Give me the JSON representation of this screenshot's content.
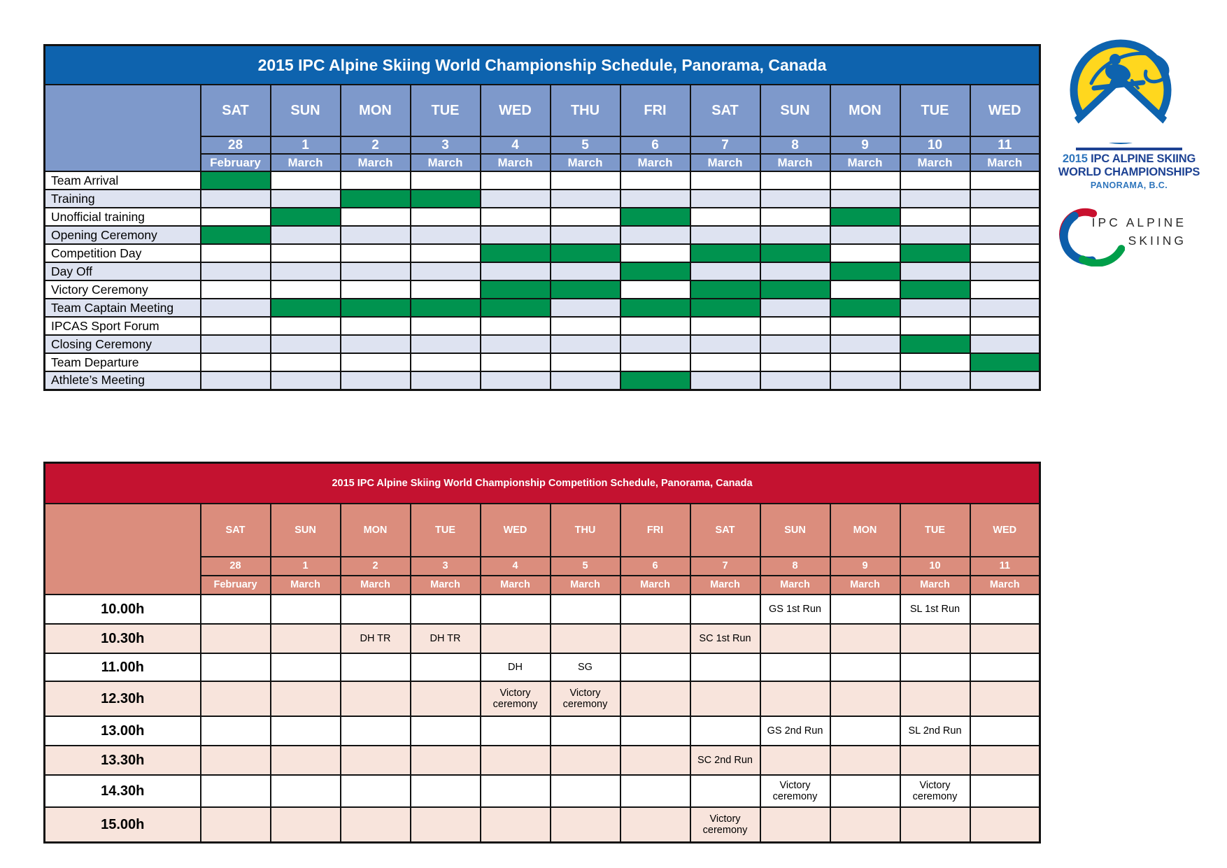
{
  "colors": {
    "planning_title_bg": "#0E63AE",
    "planning_header_bg": "#7E99CB",
    "planning_alt_row": "#DEE3F1",
    "active_green": "#00934F",
    "competition_title_bg": "#C41230",
    "competition_header_bg": "#DB8D7D",
    "competition_alt_row": "#F8E4DC",
    "grid_border": "#121212",
    "logo_navy": "#1D4293",
    "logo_blue": "#2E75BC",
    "logo_yellow": "#FFD71E",
    "agitos_red": "#C8102E",
    "agitos_blue": "#0D5EAA",
    "agitos_green": "#009E49",
    "wordmark_gray": "#2A2A2A"
  },
  "planning_table": {
    "title": "2015 IPC Alpine Skiing World Championship Schedule, Panorama, Canada",
    "columns": [
      {
        "day": "SAT",
        "date": "28",
        "month": "February"
      },
      {
        "day": "SUN",
        "date": "1",
        "month": "March"
      },
      {
        "day": "MON",
        "date": "2",
        "month": "March"
      },
      {
        "day": "TUE",
        "date": "3",
        "month": "March"
      },
      {
        "day": "WED",
        "date": "4",
        "month": "March"
      },
      {
        "day": "THU",
        "date": "5",
        "month": "March"
      },
      {
        "day": "FRI",
        "date": "6",
        "month": "March"
      },
      {
        "day": "SAT",
        "date": "7",
        "month": "March"
      },
      {
        "day": "SUN",
        "date": "8",
        "month": "March"
      },
      {
        "day": "MON",
        "date": "9",
        "month": "March"
      },
      {
        "day": "TUE",
        "date": "10",
        "month": "March"
      },
      {
        "day": "WED",
        "date": "11",
        "month": "March"
      }
    ],
    "rows": [
      {
        "label": "Team Arrival",
        "active_days": [
          0
        ]
      },
      {
        "label": "Training",
        "active_days": [
          2,
          3
        ]
      },
      {
        "label": "Unofficial training",
        "active_days": [
          1,
          6,
          9
        ]
      },
      {
        "label": "Opening Ceremony",
        "active_days": [
          0
        ]
      },
      {
        "label": "Competition Day",
        "active_days": [
          4,
          5,
          7,
          8,
          10
        ]
      },
      {
        "label": "Day Off",
        "active_days": [
          6,
          9
        ]
      },
      {
        "label": "Victory Ceremony",
        "active_days": [
          4,
          5,
          7,
          8,
          10
        ]
      },
      {
        "label": "Team Captain Meeting",
        "active_days": [
          1,
          2,
          3,
          4,
          6,
          7,
          9
        ]
      },
      {
        "label": "IPCAS Sport Forum",
        "active_days": []
      },
      {
        "label": "Closing Ceremony",
        "active_days": [
          10
        ]
      },
      {
        "label": "Team Departure",
        "active_days": [
          11
        ]
      },
      {
        "label": "Athlete’s Meeting",
        "active_days": [
          6
        ]
      }
    ]
  },
  "competition_table": {
    "title": "2015 IPC Alpine Skiing World Championship Competition Schedule, Panorama, Canada",
    "columns": [
      {
        "day": "SAT",
        "date": "28",
        "month": "February"
      },
      {
        "day": "SUN",
        "date": "1",
        "month": "March"
      },
      {
        "day": "MON",
        "date": "2",
        "month": "March"
      },
      {
        "day": "TUE",
        "date": "3",
        "month": "March"
      },
      {
        "day": "WED",
        "date": "4",
        "month": "March"
      },
      {
        "day": "THU",
        "date": "5",
        "month": "March"
      },
      {
        "day": "FRI",
        "date": "6",
        "month": "March"
      },
      {
        "day": "SAT",
        "date": "7",
        "month": "March"
      },
      {
        "day": "SUN",
        "date": "8",
        "month": "March"
      },
      {
        "day": "MON",
        "date": "9",
        "month": "March"
      },
      {
        "day": "TUE",
        "date": "10",
        "month": "March"
      },
      {
        "day": "WED",
        "date": "11",
        "month": "March"
      }
    ],
    "rows": [
      {
        "time": "10.00h",
        "events": [
          {
            "col": 8,
            "label": "GS 1st Run"
          },
          {
            "col": 10,
            "label": "SL 1st Run"
          }
        ]
      },
      {
        "time": "10.30h",
        "events": [
          {
            "col": 2,
            "label": "DH TR"
          },
          {
            "col": 3,
            "label": "DH TR"
          },
          {
            "col": 7,
            "label": "SC 1st Run"
          }
        ]
      },
      {
        "time": "11.00h",
        "events": [
          {
            "col": 4,
            "label": "DH"
          },
          {
            "col": 5,
            "label": "SG"
          }
        ]
      },
      {
        "time": "12.30h",
        "events": [
          {
            "col": 4,
            "label": "Victory ceremony"
          },
          {
            "col": 5,
            "label": "Victory ceremony"
          }
        ]
      },
      {
        "time": "13.00h",
        "events": [
          {
            "col": 8,
            "label": "GS 2nd Run"
          },
          {
            "col": 10,
            "label": "SL 2nd Run"
          }
        ]
      },
      {
        "time": "13.30h",
        "events": [
          {
            "col": 7,
            "label": "SC 2nd Run"
          }
        ]
      },
      {
        "time": "14.30h",
        "events": [
          {
            "col": 8,
            "label": "Victory ceremony"
          },
          {
            "col": 10,
            "label": "Victory ceremony"
          }
        ]
      },
      {
        "time": "15.00h",
        "events": [
          {
            "col": 7,
            "label": "Victory ceremony"
          }
        ]
      }
    ]
  },
  "event_logo": {
    "year": "2015",
    "name_line1": "IPC ALPINE SKIING",
    "name_line2": "WORLD CHAMPIONSHIPS",
    "location": "PANORAMA, B.C."
  },
  "ipc_wordmark": {
    "line1": "IPC ALPINE",
    "line2": "SKIING"
  }
}
